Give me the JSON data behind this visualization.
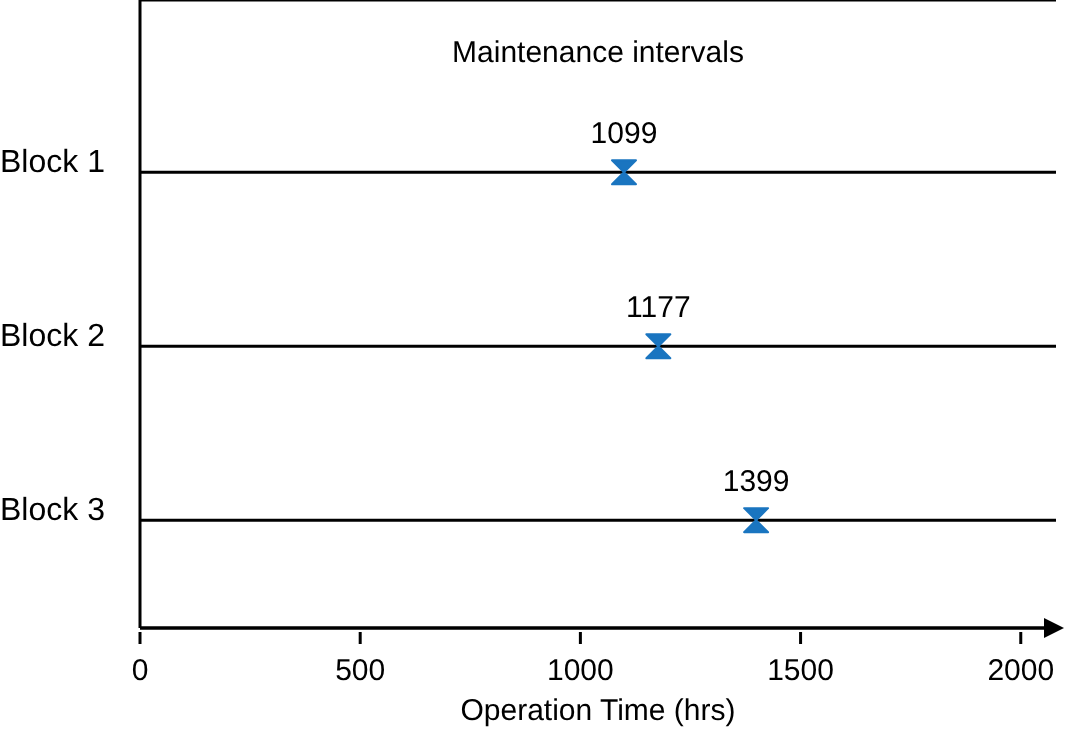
{
  "chart_data": {
    "type": "scatter",
    "orientation": "horizontal",
    "title": "Maintenance intervals",
    "xlabel": "Operation Time (hrs)",
    "categories": [
      "Block 1",
      "Block 2",
      "Block 3"
    ],
    "values": [
      1099,
      1177,
      1399
    ],
    "color": "#1a75c0",
    "data_labels": true,
    "grid": "y",
    "xlim": [
      0,
      2080
    ],
    "xticks": [
      0,
      500,
      1000,
      1500,
      2000
    ]
  }
}
